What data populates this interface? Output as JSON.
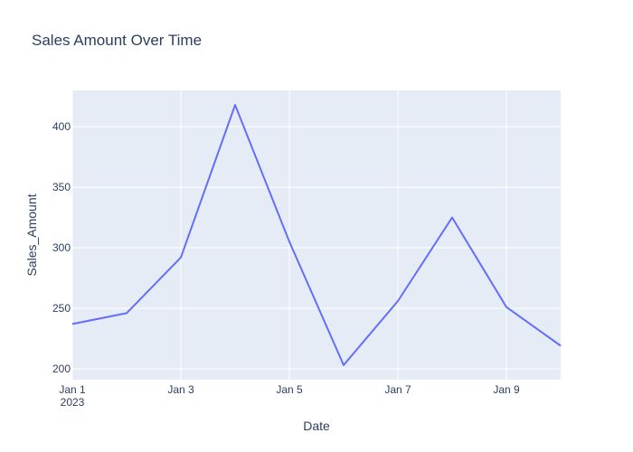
{
  "chart_data": {
    "type": "line",
    "title": "Sales Amount Over Time",
    "xlabel": "Date",
    "ylabel": "Sales_Amount",
    "x": [
      "2023-01-01",
      "2023-01-02",
      "2023-01-03",
      "2023-01-04",
      "2023-01-05",
      "2023-01-06",
      "2023-01-07",
      "2023-01-08",
      "2023-01-09",
      "2023-01-10"
    ],
    "series": [
      {
        "values": [
          237,
          246,
          292,
          418,
          305,
          203,
          256,
          325,
          251,
          219
        ]
      }
    ],
    "xlim": [
      "2023-01-01",
      "2023-01-10"
    ],
    "ylim": [
      191,
      430
    ],
    "x_ticks": [
      {
        "date": "2023-01-01",
        "label": "Jan 1",
        "sublabel": "2023"
      },
      {
        "date": "2023-01-03",
        "label": "Jan 3"
      },
      {
        "date": "2023-01-05",
        "label": "Jan 5"
      },
      {
        "date": "2023-01-07",
        "label": "Jan 7"
      },
      {
        "date": "2023-01-09",
        "label": "Jan 9"
      }
    ],
    "y_ticks": [
      200,
      250,
      300,
      350,
      400
    ],
    "grid": true,
    "colors": {
      "line": "#636efa",
      "plot_bg": "#e5ecf6",
      "grid": "#ffffff",
      "text": "#2a3f5f"
    }
  }
}
